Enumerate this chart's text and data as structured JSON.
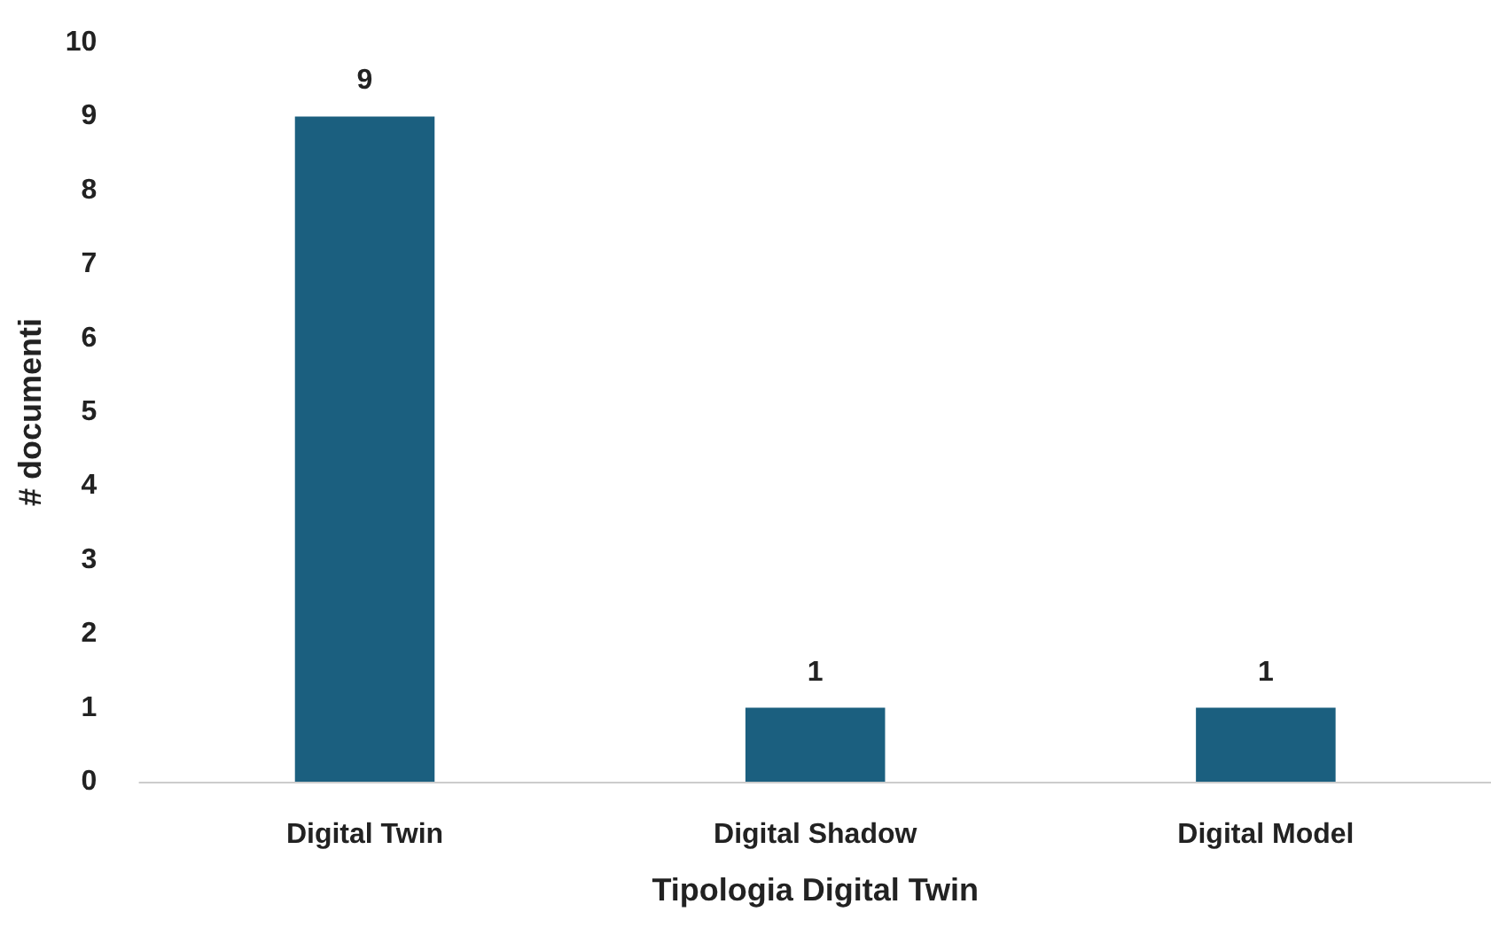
{
  "chart_data": {
    "type": "bar",
    "xlabel": "Tipologia Digital Twin",
    "ylabel": "# documenti",
    "categories": [
      "Digital Twin",
      "Digital Shadow",
      "Digital Model"
    ],
    "values": [
      9,
      1,
      1
    ],
    "color": "#1b5f7f",
    "ylim": [
      0,
      10
    ],
    "yticks": [
      0,
      1,
      2,
      3,
      4,
      5,
      6,
      7,
      8,
      9,
      10
    ],
    "grid": false,
    "data_labels": true
  }
}
